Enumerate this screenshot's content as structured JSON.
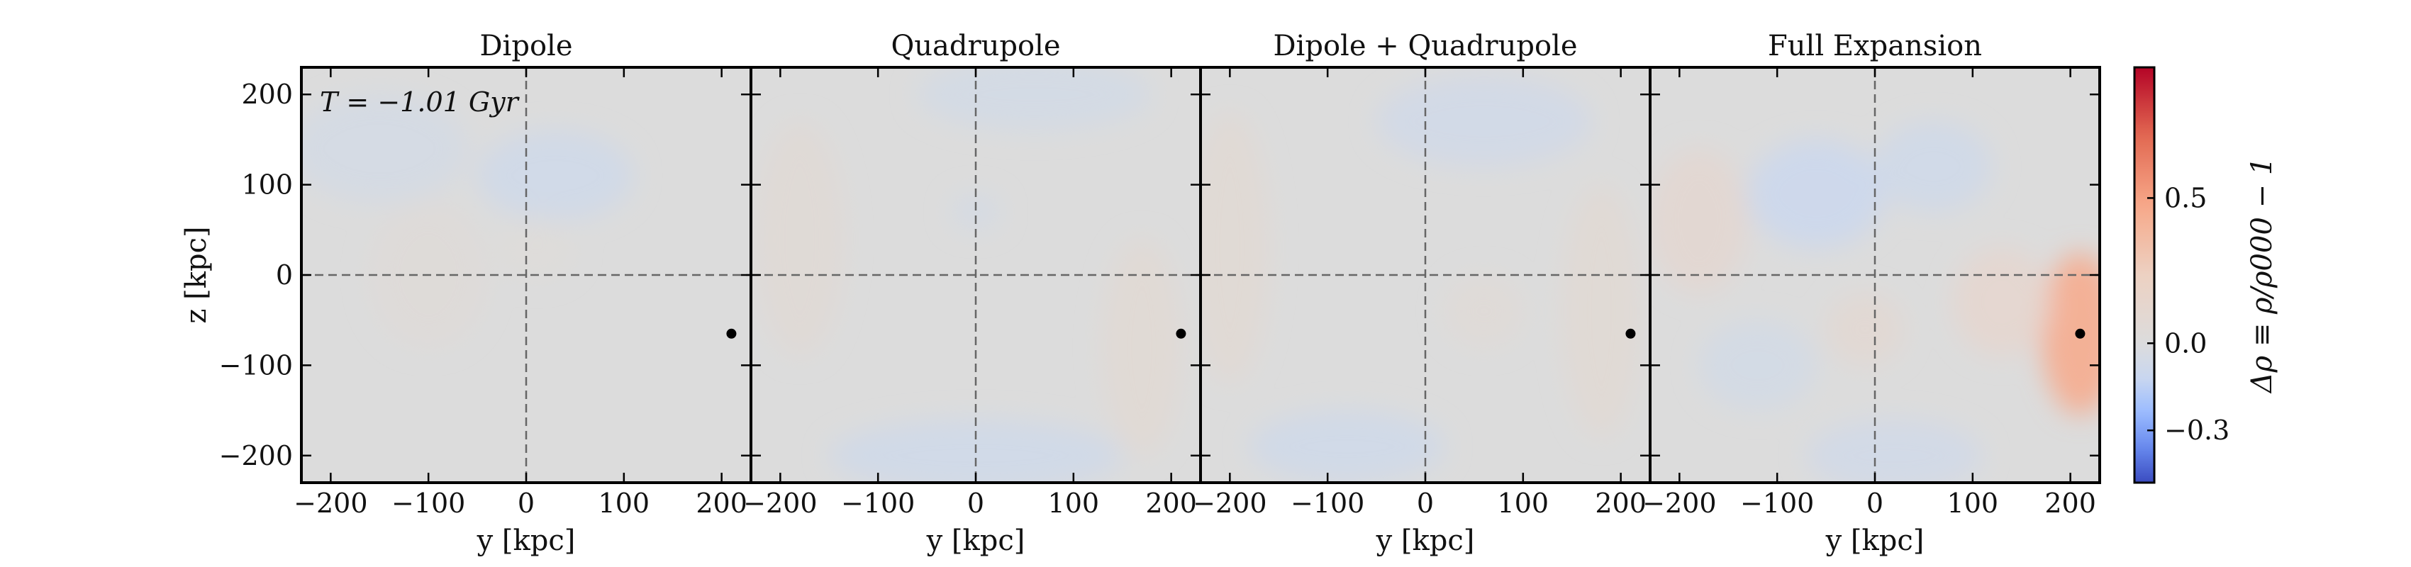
{
  "chart_data": {
    "type": "heatmap",
    "shared": {
      "xlabel": "y [kpc]",
      "ylabel": "z [kpc]",
      "xlim": [
        -230,
        230
      ],
      "ylim": [
        -230,
        230
      ],
      "xticks": [
        -200,
        -100,
        0,
        100,
        200
      ],
      "yticks": [
        -200,
        -100,
        0,
        100,
        200
      ],
      "tick_labels": [
        "−200",
        "−100",
        "0",
        "100",
        "200"
      ],
      "reference_lines": {
        "x": 0,
        "y": 0,
        "style": "dashed"
      },
      "marker": {
        "y": 210,
        "z": -65
      },
      "time_label": "T = −1.01 Gyr",
      "colorbar": {
        "label": "Δρ ≡ ρ/ρ000 − 1",
        "range": [
          -0.48,
          0.95
        ],
        "ticks": [
          -0.3,
          0.0,
          0.5
        ],
        "tick_labels": [
          "−0.3",
          "0.0",
          "0.5"
        ],
        "colors": [
          "#3b4cc0",
          "#6788ee",
          "#9abbff",
          "#c9d7f0",
          "#dcdcdc",
          "#edd1c2",
          "#f7a889",
          "#e26952",
          "#b40426"
        ]
      }
    },
    "panels": [
      {
        "title": "Dipole",
        "background": 0.0,
        "blobs": [
          {
            "y": -150,
            "z": 140,
            "ry": 90,
            "rz": 60,
            "v": -0.05
          },
          {
            "y": 30,
            "z": 110,
            "ry": 80,
            "rz": 50,
            "v": -0.08
          },
          {
            "y": -100,
            "z": 0,
            "ry": 60,
            "rz": 80,
            "v": 0.04
          },
          {
            "y": 10,
            "z": 30,
            "ry": 40,
            "rz": 35,
            "v": 0.03
          }
        ]
      },
      {
        "title": "Quadrupole",
        "background": 0.0,
        "blobs": [
          {
            "y": -180,
            "z": 40,
            "ry": 45,
            "rz": 130,
            "v": 0.06
          },
          {
            "y": 170,
            "z": -80,
            "ry": 40,
            "rz": 120,
            "v": 0.07
          },
          {
            "y": 0,
            "z": -200,
            "ry": 150,
            "rz": 40,
            "v": -0.08
          },
          {
            "y": 60,
            "z": 200,
            "ry": 120,
            "rz": 40,
            "v": -0.06
          },
          {
            "y": 0,
            "z": 70,
            "ry": 25,
            "rz": 20,
            "v": -0.05
          }
        ]
      },
      {
        "title": "Dipole + Quadrupole",
        "background": 0.0,
        "blobs": [
          {
            "y": -200,
            "z": 30,
            "ry": 40,
            "rz": 150,
            "v": 0.07
          },
          {
            "y": 180,
            "z": -40,
            "ry": 40,
            "rz": 140,
            "v": 0.07
          },
          {
            "y": -80,
            "z": -190,
            "ry": 100,
            "rz": 40,
            "v": -0.08
          },
          {
            "y": 60,
            "z": 170,
            "ry": 110,
            "rz": 50,
            "v": -0.07
          },
          {
            "y": 60,
            "z": -40,
            "ry": 40,
            "rz": 40,
            "v": 0.05
          }
        ]
      },
      {
        "title": "Full Expansion",
        "background": 0.0,
        "blobs": [
          {
            "y": 210,
            "z": -65,
            "ry": 40,
            "rz": 90,
            "v": 0.45
          },
          {
            "y": -180,
            "z": 60,
            "ry": 50,
            "rz": 80,
            "v": 0.1
          },
          {
            "y": -60,
            "z": 90,
            "ry": 70,
            "rz": 60,
            "v": -0.1
          },
          {
            "y": 60,
            "z": 120,
            "ry": 60,
            "rz": 50,
            "v": -0.08
          },
          {
            "y": -120,
            "z": -100,
            "ry": 60,
            "rz": 50,
            "v": -0.06
          },
          {
            "y": 20,
            "z": -200,
            "ry": 90,
            "rz": 40,
            "v": -0.07
          },
          {
            "y": 130,
            "z": -30,
            "ry": 50,
            "rz": 60,
            "v": 0.12
          },
          {
            "y": -10,
            "z": -60,
            "ry": 40,
            "rz": 40,
            "v": 0.08
          }
        ]
      }
    ]
  }
}
